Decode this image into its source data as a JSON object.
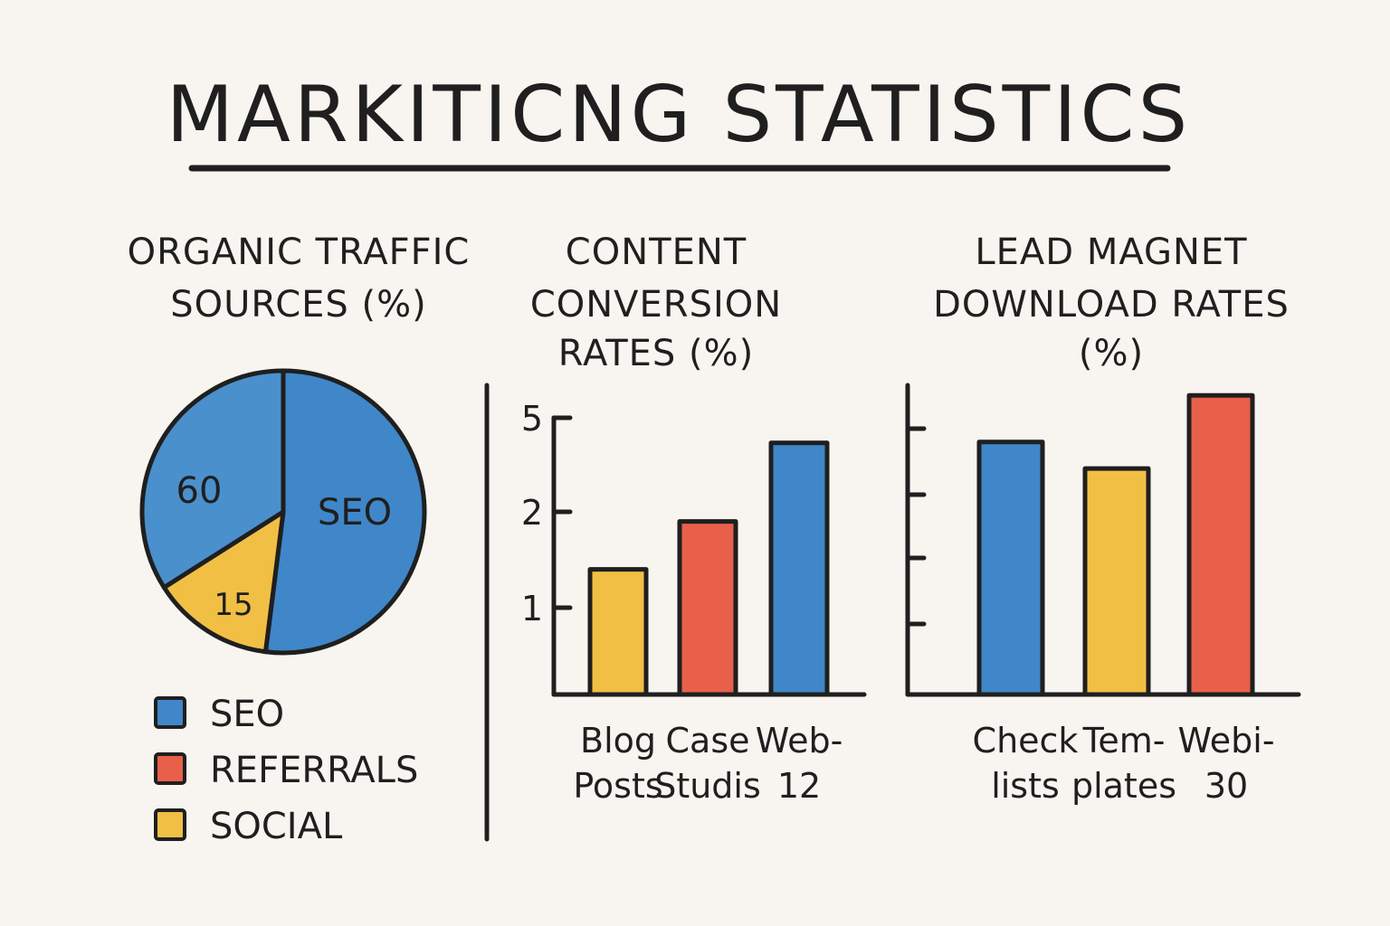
{
  "title": "MARKITICNG STATISTICS",
  "colors": {
    "blue": "#3f87c8",
    "blue_light": "#4a90cc",
    "red": "#e8604a",
    "yellow": "#f2bf45",
    "ink": "#1f1f1f",
    "background": "#f8f5f0"
  },
  "chart_data": [
    {
      "type": "pie",
      "title": [
        "ORGANIC TRAFFIC",
        "SOURCES (%)"
      ],
      "slices": [
        {
          "label": "SEO",
          "share": 52,
          "color": "#3f87c8"
        },
        {
          "label": "15",
          "share": 14,
          "color": "#f2bf45"
        },
        {
          "label": "60",
          "share": 34,
          "color": "#4a90cc"
        }
      ],
      "legend": {
        "placement": "bottom-left",
        "entries": [
          {
            "label": "SEO",
            "color": "#3f87c8"
          },
          {
            "label": "REFERRALS",
            "color": "#e8604a"
          },
          {
            "label": "SOCIAL",
            "color": "#f2bf45"
          }
        ]
      }
    },
    {
      "type": "bar",
      "title": [
        "CONTENT",
        "CONVERSION",
        "RATES (%)"
      ],
      "categories": [
        [
          "Blog",
          "Posts"
        ],
        [
          "Case",
          "Studis"
        ],
        [
          "Web-",
          "12"
        ]
      ],
      "values": [
        1.4,
        1.9,
        4.2
      ],
      "colors": [
        "#f2bf45",
        "#e8604a",
        "#3f87c8"
      ],
      "yticks": [
        "1",
        "2",
        "5"
      ],
      "grid": false
    },
    {
      "type": "bar",
      "title": [
        "LEAD MAGNET",
        "DOWNLOAD RATES",
        "(%)"
      ],
      "categories": [
        [
          "Check",
          "lists"
        ],
        [
          "Tem-",
          "plates"
        ],
        [
          "Webi-",
          "30"
        ]
      ],
      "values": [
        3.8,
        3.4,
        4.5
      ],
      "colors": [
        "#3f87c8",
        "#f2bf45",
        "#e8604a"
      ],
      "yticks": [
        "",
        "",
        "",
        ""
      ],
      "grid": false
    }
  ]
}
